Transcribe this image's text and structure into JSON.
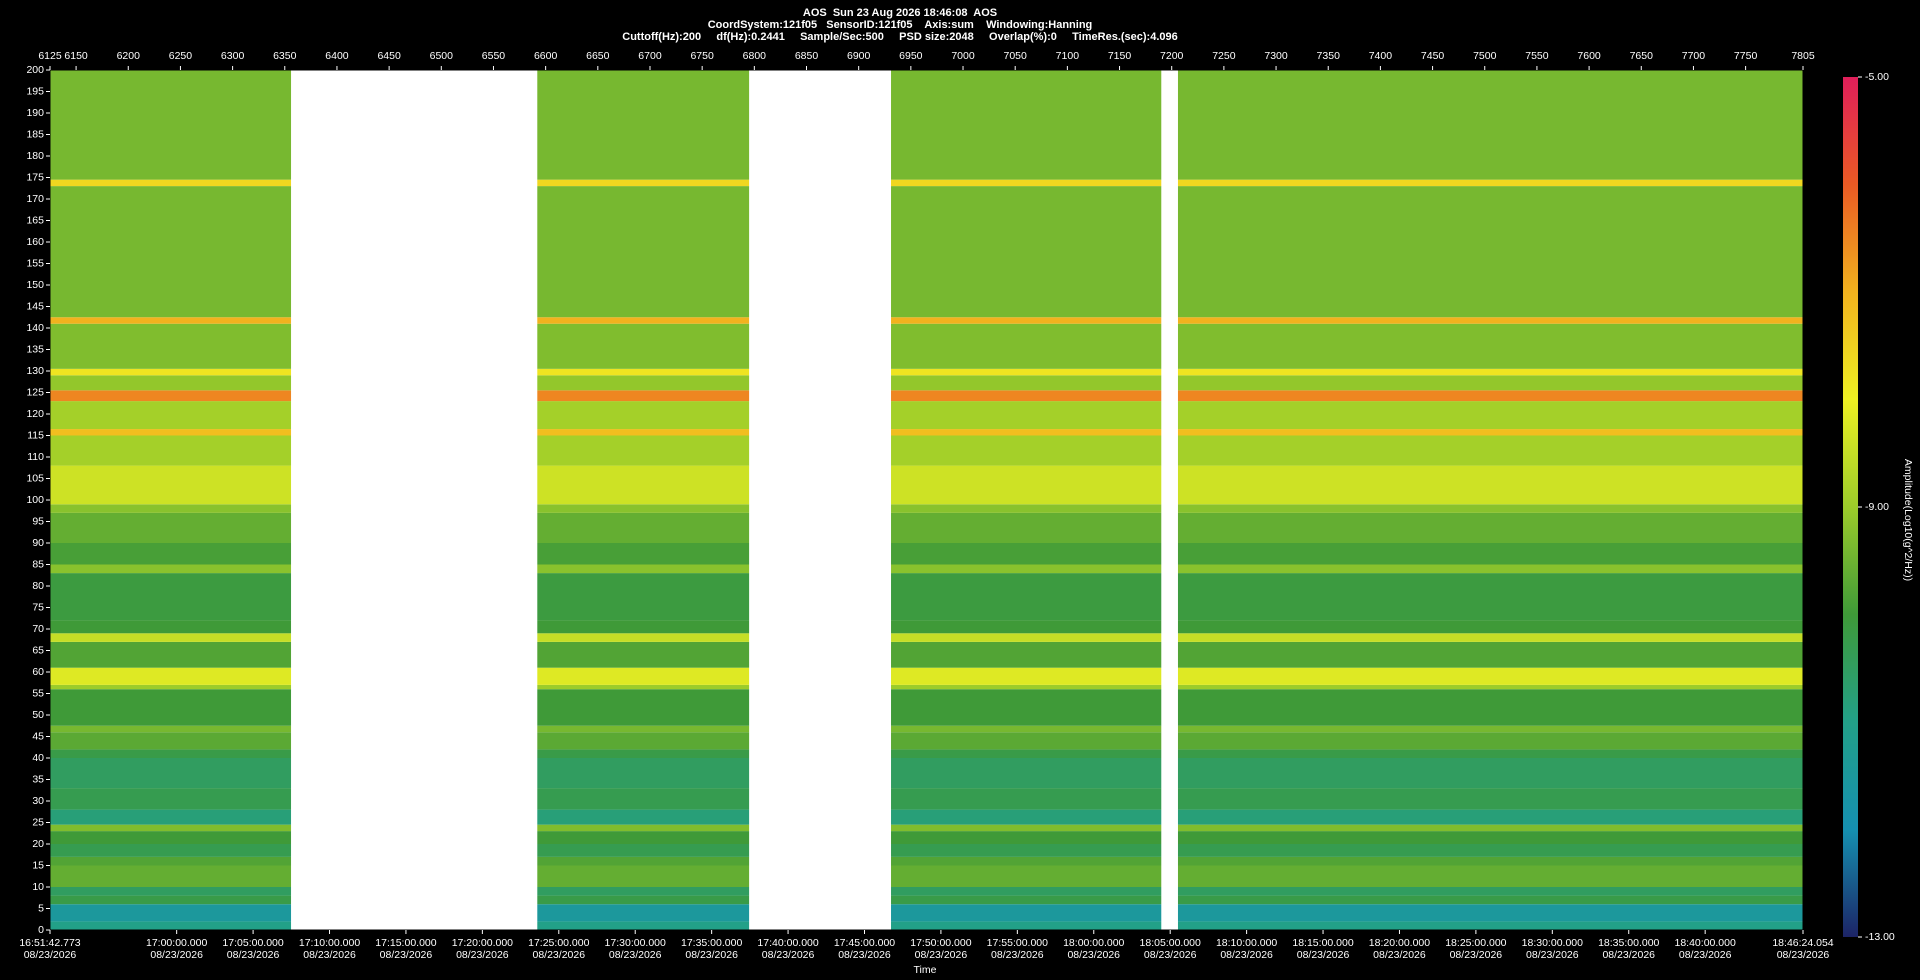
{
  "chart_data": {
    "type": "heatmap",
    "title": "AOS  Sun 23 Aug 2026 18:46:08  AOS",
    "subtitle": "CoordSystem:121f05   SensorID:121f05    Axis:sum    Windowing:Hanning",
    "subtitle2": "Cuttoff(Hz):200     df(Hz):0.2441     Sample/Sec:500     PSD size:2048     Overlap(%):0     TimeRes.(sec):4.096",
    "xlabel": "Time",
    "zlabel": "Amplitude(Log10(g^2/Hz))",
    "xlim": [
      6125,
      7805
    ],
    "xticks": [
      6125,
      6150,
      6200,
      6250,
      6300,
      6350,
      6400,
      6450,
      6500,
      6550,
      6600,
      6650,
      6700,
      6750,
      6800,
      6850,
      6900,
      6950,
      7000,
      7050,
      7100,
      7150,
      7200,
      7250,
      7300,
      7350,
      7400,
      7450,
      7500,
      7550,
      7600,
      7650,
      7700,
      7750,
      7805
    ],
    "ylim": [
      0,
      200
    ],
    "yticks": [
      0,
      5,
      10,
      15,
      20,
      25,
      30,
      35,
      40,
      45,
      50,
      55,
      60,
      65,
      70,
      75,
      80,
      85,
      90,
      95,
      100,
      105,
      110,
      115,
      120,
      125,
      130,
      135,
      140,
      145,
      150,
      155,
      160,
      165,
      170,
      175,
      180,
      185,
      190,
      195,
      200
    ],
    "time_ticks": [
      {
        "label": "16:51:42.773",
        "date": "08/23/2026"
      },
      {
        "label": "17:00:00.000",
        "date": "08/23/2026"
      },
      {
        "label": "17:05:00.000",
        "date": "08/23/2026"
      },
      {
        "label": "17:10:00.000",
        "date": "08/23/2026"
      },
      {
        "label": "17:15:00.000",
        "date": "08/23/2026"
      },
      {
        "label": "17:20:00.000",
        "date": "08/23/2026"
      },
      {
        "label": "17:25:00.000",
        "date": "08/23/2026"
      },
      {
        "label": "17:30:00.000",
        "date": "08/23/2026"
      },
      {
        "label": "17:35:00.000",
        "date": "08/23/2026"
      },
      {
        "label": "17:40:00.000",
        "date": "08/23/2026"
      },
      {
        "label": "17:45:00.000",
        "date": "08/23/2026"
      },
      {
        "label": "17:50:00.000",
        "date": "08/23/2026"
      },
      {
        "label": "17:55:00.000",
        "date": "08/23/2026"
      },
      {
        "label": "18:00:00.000",
        "date": "08/23/2026"
      },
      {
        "label": "18:05:00.000",
        "date": "08/23/2026"
      },
      {
        "label": "18:10:00.000",
        "date": "08/23/2026"
      },
      {
        "label": "18:15:00.000",
        "date": "08/23/2026"
      },
      {
        "label": "18:20:00.000",
        "date": "08/23/2026"
      },
      {
        "label": "18:25:00.000",
        "date": "08/23/2026"
      },
      {
        "label": "18:30:00.000",
        "date": "08/23/2026"
      },
      {
        "label": "18:35:00.000",
        "date": "08/23/2026"
      },
      {
        "label": "18:40:00.000",
        "date": "08/23/2026"
      },
      {
        "label": "18:46:24.054",
        "date": "08/23/2026"
      }
    ],
    "zlim": [
      -13,
      -5
    ],
    "zticks": [
      {
        "value": -5,
        "label": "-5.00"
      },
      {
        "value": -9,
        "label": "-9.00"
      },
      {
        "value": -13,
        "label": "-13.00"
      }
    ],
    "colormap": [
      "#1c2466",
      "#1590b0",
      "#22a088",
      "#3f9a38",
      "#9ccc2a",
      "#eef022",
      "#f2b21e",
      "#ea5a24",
      "#e01e5a"
    ],
    "segments": [
      [
        6125,
        6356
      ],
      [
        6592,
        6795
      ],
      [
        6931,
        7190
      ],
      [
        7206,
        7805
      ]
    ],
    "bands": {
      "edges": [
        0,
        2,
        6,
        8,
        10,
        15,
        17,
        20,
        23,
        24.5,
        28,
        33,
        40,
        42,
        46,
        47.5,
        56,
        57,
        61,
        67,
        69,
        72,
        83,
        85,
        90,
        97,
        99,
        108,
        115,
        116.5,
        123,
        125.5,
        129,
        130.5,
        141,
        142.5,
        173,
        174.5,
        200
      ],
      "values": [
        -11.0,
        -11.5,
        -10.2,
        -10.5,
        -9.6,
        -9.8,
        -10.3,
        -10.0,
        -9.3,
        -10.8,
        -10.3,
        -10.5,
        -10.2,
        -9.7,
        -9.4,
        -10.0,
        -9.0,
        -8.2,
        -9.8,
        -8.5,
        -10.0,
        -10.1,
        -9.2,
        -9.9,
        -9.6,
        -9.2,
        -8.4,
        -8.9,
        -7.2,
        -8.9,
        -6.5,
        -9.1,
        -7.8,
        -9.3,
        -7.0,
        -9.4,
        -7.6,
        -9.4
      ]
    }
  }
}
